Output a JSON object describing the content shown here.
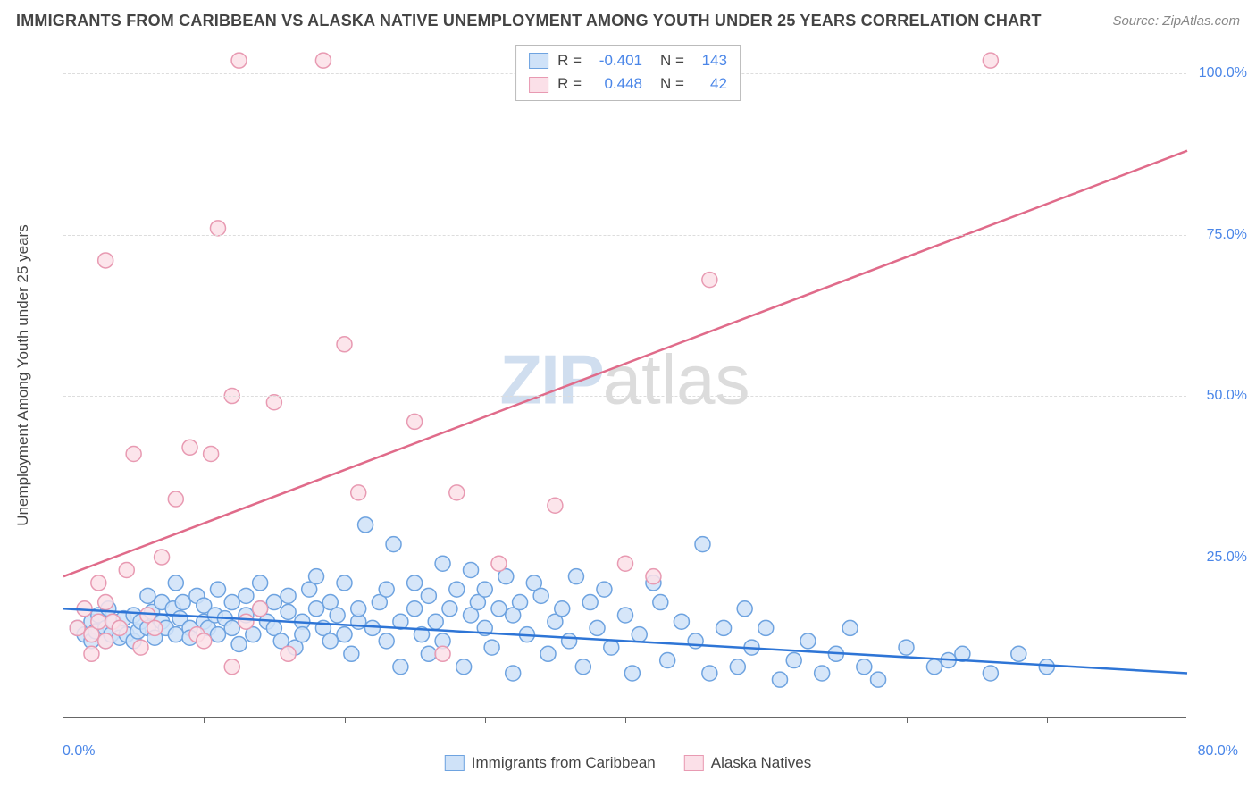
{
  "title": "IMMIGRANTS FROM CARIBBEAN VS ALASKA NATIVE UNEMPLOYMENT AMONG YOUTH UNDER 25 YEARS CORRELATION CHART",
  "source_label": "Source: ZipAtlas.com",
  "y_axis_title": "Unemployment Among Youth under 25 years",
  "watermark_a": "ZIP",
  "watermark_b": "atlas",
  "chart": {
    "type": "scatter",
    "xlim": [
      0,
      80
    ],
    "ylim": [
      0,
      105
    ],
    "x_min_label": "0.0%",
    "x_max_label": "80.0%",
    "y_ticks": [
      25,
      50,
      75,
      100
    ],
    "y_tick_labels": [
      "25.0%",
      "50.0%",
      "75.0%",
      "100.0%"
    ],
    "x_tick_positions": [
      10,
      20,
      30,
      40,
      50,
      60,
      70
    ],
    "grid_color": "#dddddd",
    "background_color": "#ffffff",
    "marker_radius": 8.5,
    "series": [
      {
        "name": "Immigrants from Caribbean",
        "fill": "#cfe2f8",
        "stroke": "#6ea3e0",
        "R": "-0.401",
        "N": "143",
        "trend": {
          "x1": 0,
          "y1": 17,
          "x2": 80,
          "y2": 7,
          "color": "#2e75d6",
          "width": 2.5
        },
        "points": [
          [
            1,
            14
          ],
          [
            1.5,
            13
          ],
          [
            2,
            15
          ],
          [
            2,
            12
          ],
          [
            2.5,
            16
          ],
          [
            2.3,
            13.5
          ],
          [
            3,
            14
          ],
          [
            3,
            12
          ],
          [
            3.2,
            17
          ],
          [
            3.4,
            13
          ],
          [
            3.6,
            15
          ],
          [
            4,
            14
          ],
          [
            4,
            12.5
          ],
          [
            4.3,
            15.5
          ],
          [
            4.5,
            13
          ],
          [
            5,
            16
          ],
          [
            5,
            12
          ],
          [
            5.3,
            13.5
          ],
          [
            5.5,
            15
          ],
          [
            6,
            19
          ],
          [
            6,
            14
          ],
          [
            6.3,
            16.5
          ],
          [
            6.5,
            12.5
          ],
          [
            7,
            18
          ],
          [
            7,
            15
          ],
          [
            7.3,
            14
          ],
          [
            7.8,
            17
          ],
          [
            8,
            21
          ],
          [
            8,
            13
          ],
          [
            8.3,
            15.5
          ],
          [
            8.5,
            18
          ],
          [
            9,
            14
          ],
          [
            9,
            12.5
          ],
          [
            9.5,
            19
          ],
          [
            10,
            15
          ],
          [
            10,
            17.5
          ],
          [
            10.3,
            14
          ],
          [
            10.8,
            16
          ],
          [
            11,
            20
          ],
          [
            11,
            13
          ],
          [
            11.5,
            15.5
          ],
          [
            12,
            18
          ],
          [
            12,
            14
          ],
          [
            12.5,
            11.5
          ],
          [
            13,
            16
          ],
          [
            13,
            19
          ],
          [
            13.5,
            13
          ],
          [
            14,
            17
          ],
          [
            14,
            21
          ],
          [
            14.5,
            15
          ],
          [
            15,
            18
          ],
          [
            15,
            14
          ],
          [
            15.5,
            12
          ],
          [
            16,
            16.5
          ],
          [
            16,
            19
          ],
          [
            16.5,
            11
          ],
          [
            17,
            15
          ],
          [
            17,
            13
          ],
          [
            17.5,
            20
          ],
          [
            18,
            17
          ],
          [
            18,
            22
          ],
          [
            18.5,
            14
          ],
          [
            19,
            12
          ],
          [
            19,
            18
          ],
          [
            19.5,
            16
          ],
          [
            20,
            21
          ],
          [
            20,
            13
          ],
          [
            20.5,
            10
          ],
          [
            21,
            15
          ],
          [
            21,
            17
          ],
          [
            21.5,
            30
          ],
          [
            22,
            14
          ],
          [
            22.5,
            18
          ],
          [
            23,
            12
          ],
          [
            23,
            20
          ],
          [
            23.5,
            27
          ],
          [
            24,
            15
          ],
          [
            24,
            8
          ],
          [
            25,
            17
          ],
          [
            25,
            21
          ],
          [
            25.5,
            13
          ],
          [
            26,
            19
          ],
          [
            26,
            10
          ],
          [
            26.5,
            15
          ],
          [
            27,
            24
          ],
          [
            27,
            12
          ],
          [
            27.5,
            17
          ],
          [
            28,
            20
          ],
          [
            28.5,
            8
          ],
          [
            29,
            16
          ],
          [
            29,
            23
          ],
          [
            29.5,
            18
          ],
          [
            30,
            14
          ],
          [
            30,
            20
          ],
          [
            30.5,
            11
          ],
          [
            31,
            17
          ],
          [
            31.5,
            22
          ],
          [
            32,
            16
          ],
          [
            32,
            7
          ],
          [
            32.5,
            18
          ],
          [
            33,
            13
          ],
          [
            33.5,
            21
          ],
          [
            34,
            19
          ],
          [
            34.5,
            10
          ],
          [
            35,
            15
          ],
          [
            35.5,
            17
          ],
          [
            36,
            12
          ],
          [
            36.5,
            22
          ],
          [
            37,
            8
          ],
          [
            37.5,
            18
          ],
          [
            38,
            14
          ],
          [
            38.5,
            20
          ],
          [
            39,
            11
          ],
          [
            40,
            16
          ],
          [
            40.5,
            7
          ],
          [
            41,
            13
          ],
          [
            42,
            21
          ],
          [
            42.5,
            18
          ],
          [
            43,
            9
          ],
          [
            44,
            15
          ],
          [
            45,
            12
          ],
          [
            45.5,
            27
          ],
          [
            46,
            7
          ],
          [
            47,
            14
          ],
          [
            48,
            8
          ],
          [
            48.5,
            17
          ],
          [
            49,
            11
          ],
          [
            50,
            14
          ],
          [
            51,
            6
          ],
          [
            52,
            9
          ],
          [
            53,
            12
          ],
          [
            54,
            7
          ],
          [
            55,
            10
          ],
          [
            56,
            14
          ],
          [
            57,
            8
          ],
          [
            58,
            6
          ],
          [
            60,
            11
          ],
          [
            62,
            8
          ],
          [
            64,
            10
          ],
          [
            66,
            7
          ],
          [
            63,
            9
          ],
          [
            68,
            10
          ],
          [
            70,
            8
          ]
        ]
      },
      {
        "name": "Alaska Natives",
        "fill": "#fbe0e8",
        "stroke": "#e89ab2",
        "R": "0.448",
        "N": "42",
        "trend": {
          "x1": 0,
          "y1": 22,
          "x2": 80,
          "y2": 88,
          "color": "#e06b8a",
          "width": 2.5
        },
        "points": [
          [
            1,
            14
          ],
          [
            1.5,
            17
          ],
          [
            2,
            13
          ],
          [
            2,
            10
          ],
          [
            2.5,
            15
          ],
          [
            2.5,
            21
          ],
          [
            3,
            12
          ],
          [
            3,
            18
          ],
          [
            3.5,
            15
          ],
          [
            4,
            14
          ],
          [
            4.5,
            23
          ],
          [
            3,
            71
          ],
          [
            5,
            41
          ],
          [
            5.5,
            11
          ],
          [
            6,
            16
          ],
          [
            6.5,
            14
          ],
          [
            7,
            25
          ],
          [
            8,
            34
          ],
          [
            9,
            42
          ],
          [
            9.5,
            13
          ],
          [
            10,
            12
          ],
          [
            10.5,
            41
          ],
          [
            11,
            76
          ],
          [
            12,
            50
          ],
          [
            12.5,
            102
          ],
          [
            12,
            8
          ],
          [
            13,
            15
          ],
          [
            14,
            17
          ],
          [
            15,
            49
          ],
          [
            16,
            10
          ],
          [
            18.5,
            102
          ],
          [
            20,
            58
          ],
          [
            21,
            35
          ],
          [
            25,
            46
          ],
          [
            27,
            10
          ],
          [
            28,
            35
          ],
          [
            31,
            24
          ],
          [
            35,
            33
          ],
          [
            40,
            24
          ],
          [
            42,
            22
          ],
          [
            46,
            68
          ],
          [
            66,
            102
          ]
        ]
      }
    ]
  },
  "legend_bottom": [
    {
      "label": "Immigrants from Caribbean",
      "fill": "#cfe2f8",
      "stroke": "#6ea3e0"
    },
    {
      "label": "Alaska Natives",
      "fill": "#fbe0e8",
      "stroke": "#e89ab2"
    }
  ]
}
